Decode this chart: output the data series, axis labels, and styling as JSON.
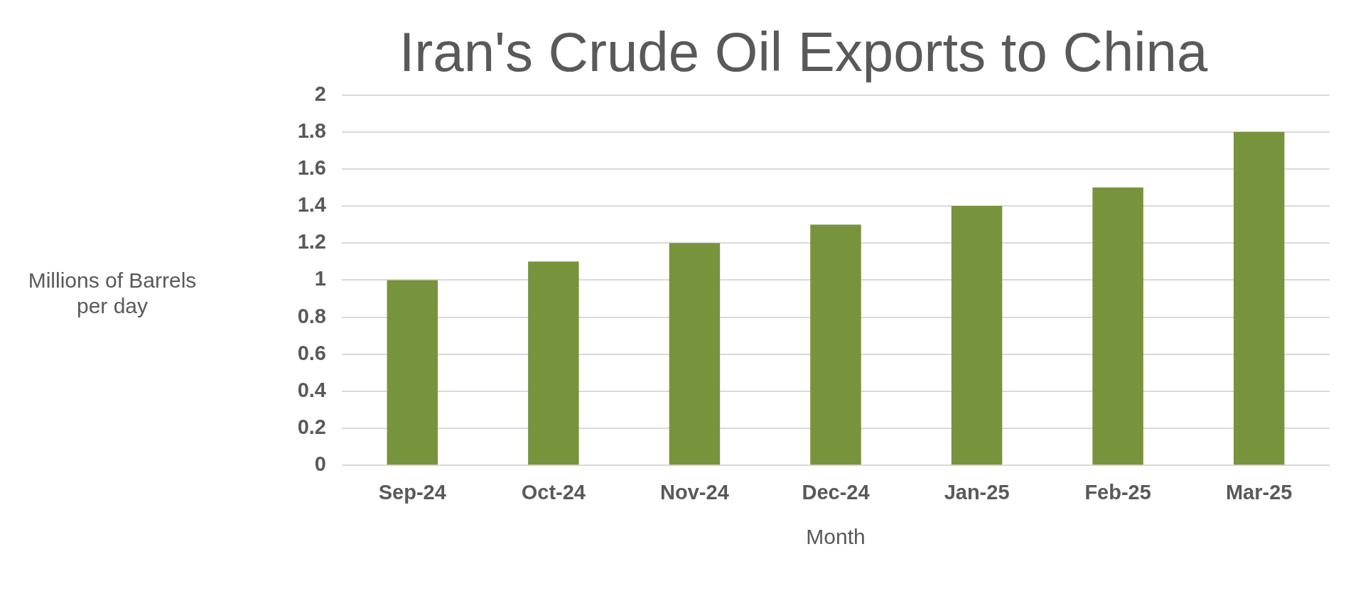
{
  "chart_data": {
    "type": "bar",
    "title": "Iran's Crude Oil Exports to China",
    "xlabel": "Month",
    "ylabel": "Millions of Barrels per day",
    "categories": [
      "Sep-24",
      "Oct-24",
      "Nov-24",
      "Dec-24",
      "Jan-25",
      "Feb-25",
      "Mar-25"
    ],
    "values": [
      1.0,
      1.1,
      1.2,
      1.3,
      1.4,
      1.5,
      1.8
    ],
    "color": "#77933c",
    "ylim": [
      0,
      2
    ],
    "yticks": [
      0,
      0.2,
      0.4,
      0.6,
      0.8,
      1,
      1.2,
      1.4,
      1.6,
      1.8,
      2
    ],
    "grid": "y"
  }
}
